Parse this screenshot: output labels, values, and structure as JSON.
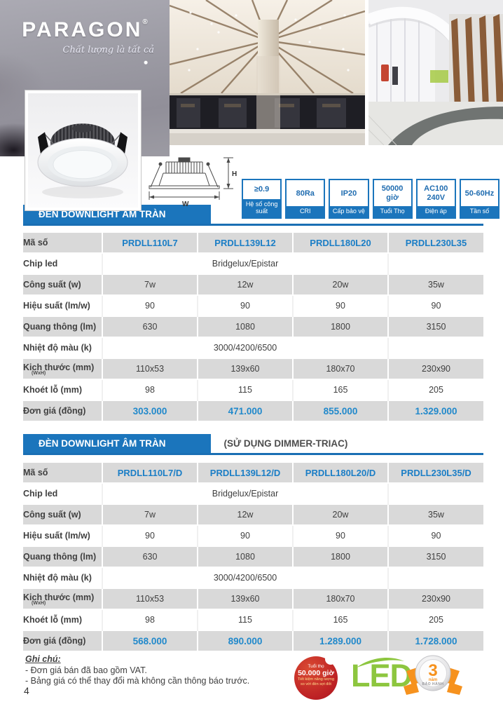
{
  "brand": {
    "logo": "PARAGON",
    "registered": "®",
    "tagline": "Chất lượng là tất cả"
  },
  "dimension_diagram": {
    "width_label": "W",
    "height_label": "H"
  },
  "spec_badges": [
    {
      "value": "≥0.9",
      "label": "Hệ số công suất"
    },
    {
      "value": "80Ra",
      "label": "CRI"
    },
    {
      "value": "IP20",
      "label": "Cấp bảo vệ"
    },
    {
      "value": "50000 giờ",
      "label": "Tuổi Thọ"
    },
    {
      "value": "AC100 240V",
      "label": "Điện áp"
    },
    {
      "value": "50-60Hz",
      "label": "Tần số"
    }
  ],
  "sections": [
    {
      "title": "ĐÈN DOWNLIGHT ÂM TRÀN",
      "subtitle": "",
      "table": {
        "code_row_label": "Mã số",
        "codes": [
          "PRDLL110L7",
          "PRDLL139L12",
          "PRDLL180L20",
          "PRDLL230L35"
        ],
        "rows": [
          {
            "label": "Chip led",
            "merged": "Bridgelux/Epistar"
          },
          {
            "label": "Công suất (w)",
            "values": [
              "7w",
              "12w",
              "20w",
              "35w"
            ]
          },
          {
            "label": "Hiệu suất (lm/w)",
            "values": [
              "90",
              "90",
              "90",
              "90"
            ]
          },
          {
            "label": "Quang thông (lm)",
            "values": [
              "630",
              "1080",
              "1800",
              "3150"
            ]
          },
          {
            "label": "Nhiệt độ màu (k)",
            "merged": "3000/4200/6500"
          },
          {
            "label": "Kich thước (mm)",
            "sublabel": "(WxH)",
            "values": [
              "110x53",
              "139x60",
              "180x70",
              "230x90"
            ]
          },
          {
            "label": "Khoét lỗ (mm)",
            "values": [
              "98",
              "115",
              "165",
              "205"
            ]
          },
          {
            "label": "Đơn giá (đồng)",
            "values": [
              "303.000",
              "471.000",
              "855.000",
              "1.329.000"
            ],
            "highlight": true
          }
        ]
      }
    },
    {
      "title": "ĐÈN DOWNLIGHT ÂM TRÀN",
      "subtitle": "(SỬ DỤNG DIMMER-TRIAC)",
      "table": {
        "code_row_label": "Mã số",
        "codes": [
          "PRDLL110L7/D",
          "PRDLL139L12/D",
          "PRDLL180L20/D",
          "PRDLL230L35/D"
        ],
        "rows": [
          {
            "label": "Chip led",
            "merged": "Bridgelux/Epistar"
          },
          {
            "label": "Công suất (w)",
            "values": [
              "7w",
              "12w",
              "20w",
              "35w"
            ]
          },
          {
            "label": "Hiệu suất (lm/w)",
            "values": [
              "90",
              "90",
              "90",
              "90"
            ]
          },
          {
            "label": "Quang thông (lm)",
            "values": [
              "630",
              "1080",
              "1800",
              "3150"
            ]
          },
          {
            "label": "Nhiệt độ màu (k)",
            "merged": "3000/4200/6500"
          },
          {
            "label": "Kich thước (mm)",
            "sublabel": "(WxH)",
            "values": [
              "110x53",
              "139x60",
              "180x70",
              "230x90"
            ]
          },
          {
            "label": "Khoét lỗ (mm)",
            "values": [
              "98",
              "115",
              "165",
              "205"
            ]
          },
          {
            "label": "Đơn giá (đồng)",
            "values": [
              "568.000",
              "890.000",
              "1.289.000",
              "1.728.000"
            ],
            "highlight": true
          }
        ]
      }
    }
  ],
  "notes": {
    "heading": "Ghi chú:",
    "items": [
      "- Đơn giá bán đã bao gồm VAT.",
      "- Bảng giá có thể thay đổi mà không cần thông báo trước."
    ]
  },
  "footer_badges": {
    "sticker": {
      "lines": [
        "Tuổi thọ",
        "50.000 giờ",
        "Tiết kiệm năng lượng",
        "so với đèn sợi đốt"
      ]
    },
    "led_logo": "LED",
    "medal": {
      "number": "3",
      "unit": "năm",
      "label": "BẢO HÀNH"
    }
  },
  "page_number": "4",
  "colors": {
    "primary_blue": "#1b75bc",
    "code_blue": "#1b7ec6",
    "price_blue": "#2189cb",
    "row_gray": "#d9d9d9",
    "led_green": "#8dc63f",
    "medal_orange": "#f6921e",
    "sticker_red": "#bc2024"
  }
}
